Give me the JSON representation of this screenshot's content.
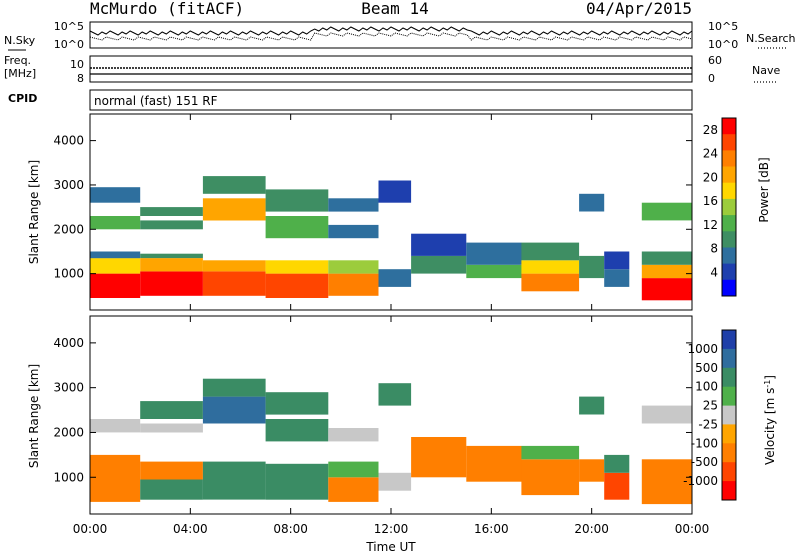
{
  "header": {
    "station": "McMurdo (fitACF)",
    "beam": "Beam 14",
    "date": "04/Apr/2015"
  },
  "top_panels": {
    "nsky_label": "N.Sky",
    "nsearch_label": "N.Search",
    "noise_ticks_left": [
      "10^5",
      "10^0"
    ],
    "noise_ticks_right": [
      "10^5",
      "10^0"
    ],
    "freq_label_line1": "Freq.",
    "freq_label_line2": "[MHz]",
    "freq_ticks": [
      "10",
      "8"
    ],
    "nave_label": "Nave",
    "nave_ticks": [
      "60",
      "0"
    ],
    "cpid_label": "CPID",
    "cpid_value": "normal (fast) 151 RF"
  },
  "chart_data": [
    {
      "type": "heatmap",
      "title": "",
      "xlabel": "",
      "ylabel": "Slant Range [km]",
      "yticks": [
        "1000",
        "2000",
        "3000",
        "4000"
      ],
      "ylim": [
        180,
        4600
      ],
      "xlim": [
        0,
        24
      ],
      "x_units": "hours UT",
      "colorbar_label": "Power [dB]",
      "colorbar_ticks": [
        "4",
        "8",
        "12",
        "16",
        "20",
        "24",
        "28"
      ],
      "colorbar_colors": [
        "#0000ff",
        "#1e3fae",
        "#2e6f9e",
        "#3e8e63",
        "#4fb04a",
        "#9ccc3c",
        "#ffd700",
        "#ffa500",
        "#ff7f00",
        "#ff4500",
        "#ff0000"
      ],
      "bands": [
        {
          "x": [
            0.0,
            2.0
          ],
          "ranges": [
            [
              450,
              1000,
              28
            ],
            [
              1000,
              1350,
              18
            ],
            [
              1350,
              1500,
              8
            ],
            [
              2000,
              2300,
              14
            ],
            [
              2600,
              2950,
              8
            ]
          ]
        },
        {
          "x": [
            2.0,
            4.5
          ],
          "ranges": [
            [
              500,
              1050,
              28
            ],
            [
              1050,
              1350,
              20
            ],
            [
              1350,
              1450,
              10
            ],
            [
              2000,
              2200,
              12
            ],
            [
              2300,
              2500,
              12
            ]
          ]
        },
        {
          "x": [
            4.5,
            7.0
          ],
          "ranges": [
            [
              500,
              1050,
              27
            ],
            [
              1050,
              1300,
              20
            ],
            [
              2200,
              2700,
              20
            ],
            [
              2800,
              3200,
              12
            ]
          ]
        },
        {
          "x": [
            7.0,
            9.5
          ],
          "ranges": [
            [
              450,
              1000,
              27
            ],
            [
              1000,
              1300,
              18
            ],
            [
              1800,
              2300,
              14
            ],
            [
              2400,
              2900,
              10
            ]
          ]
        },
        {
          "x": [
            9.5,
            11.5
          ],
          "ranges": [
            [
              500,
              1000,
              24
            ],
            [
              1000,
              1300,
              16
            ],
            [
              1800,
              2100,
              8
            ],
            [
              2400,
              2700,
              8
            ]
          ]
        },
        {
          "x": [
            11.5,
            12.8
          ],
          "ranges": [
            [
              700,
              1100,
              8
            ],
            [
              2600,
              3100,
              6
            ]
          ]
        },
        {
          "x": [
            12.8,
            15.0
          ],
          "ranges": [
            [
              1000,
              1400,
              10
            ],
            [
              1400,
              1900,
              6
            ]
          ]
        },
        {
          "x": [
            15.0,
            17.2
          ],
          "ranges": [
            [
              900,
              1200,
              14
            ],
            [
              1200,
              1700,
              8
            ]
          ]
        },
        {
          "x": [
            17.2,
            19.5
          ],
          "ranges": [
            [
              600,
              1000,
              24
            ],
            [
              1000,
              1300,
              18
            ],
            [
              1300,
              1700,
              10
            ]
          ]
        },
        {
          "x": [
            19.5,
            20.5
          ],
          "ranges": [
            [
              900,
              1400,
              12
            ],
            [
              2400,
              2800,
              8
            ]
          ]
        },
        {
          "x": [
            20.5,
            21.5
          ],
          "ranges": [
            [
              700,
              1100,
              8
            ],
            [
              1100,
              1500,
              6
            ]
          ]
        },
        {
          "x": [
            22.0,
            24.0
          ],
          "ranges": [
            [
              400,
              900,
              28
            ],
            [
              900,
              1200,
              20
            ],
            [
              1200,
              1500,
              10
            ],
            [
              2200,
              2600,
              14
            ]
          ]
        }
      ]
    },
    {
      "type": "heatmap",
      "title": "",
      "xlabel": "Time UT",
      "ylabel": "Slant Range [km]",
      "yticks": [
        "1000",
        "2000",
        "3000",
        "4000"
      ],
      "xticks": [
        "00:00",
        "04:00",
        "08:00",
        "12:00",
        "16:00",
        "20:00",
        "00:00"
      ],
      "ylim": [
        180,
        4600
      ],
      "xlim": [
        0,
        24
      ],
      "x_units": "hours UT",
      "colorbar_label": "Velocity [m s",
      "colorbar_label_sup": "-1",
      "colorbar_label_end": "]",
      "colorbar_ticks": [
        "1000",
        "500",
        "100",
        "25",
        "-25",
        "-100",
        "-500",
        "-1000"
      ],
      "colorbar_colors": [
        "#1f3fa8",
        "#2f6d9e",
        "#3a8c64",
        "#4fb04a",
        "#c8c8c8",
        "#ffa500",
        "#ff7f00",
        "#ff4500",
        "#ff0000"
      ],
      "bands": [
        {
          "x": [
            0.0,
            2.0
          ],
          "ranges": [
            [
              450,
              1500,
              -300
            ],
            [
              2000,
              2300,
              0
            ]
          ]
        },
        {
          "x": [
            2.0,
            4.5
          ],
          "ranges": [
            [
              500,
              950,
              300
            ],
            [
              950,
              1350,
              -200
            ],
            [
              2000,
              2200,
              0
            ],
            [
              2300,
              2700,
              300
            ]
          ]
        },
        {
          "x": [
            4.5,
            7.0
          ],
          "ranges": [
            [
              500,
              1050,
              300
            ],
            [
              1050,
              1350,
              150
            ],
            [
              2200,
              2800,
              600
            ],
            [
              2800,
              3200,
              200
            ]
          ]
        },
        {
          "x": [
            7.0,
            9.5
          ],
          "ranges": [
            [
              500,
              950,
              300
            ],
            [
              950,
              1300,
              100
            ],
            [
              1800,
              2300,
              400
            ],
            [
              2400,
              2900,
              150
            ]
          ]
        },
        {
          "x": [
            9.5,
            11.5
          ],
          "ranges": [
            [
              450,
              1000,
              -300
            ],
            [
              1000,
              1350,
              80
            ],
            [
              1800,
              2100,
              0
            ]
          ]
        },
        {
          "x": [
            11.5,
            12.8
          ],
          "ranges": [
            [
              700,
              1100,
              0
            ],
            [
              2600,
              3100,
              200
            ]
          ]
        },
        {
          "x": [
            12.8,
            15.0
          ],
          "ranges": [
            [
              1000,
              1900,
              -300
            ]
          ]
        },
        {
          "x": [
            15.0,
            17.2
          ],
          "ranges": [
            [
              900,
              1700,
              -300
            ]
          ]
        },
        {
          "x": [
            17.2,
            19.5
          ],
          "ranges": [
            [
              600,
              1400,
              -300
            ],
            [
              1400,
              1700,
              50
            ]
          ]
        },
        {
          "x": [
            19.5,
            20.5
          ],
          "ranges": [
            [
              900,
              1400,
              -200
            ],
            [
              2400,
              2800,
              150
            ]
          ]
        },
        {
          "x": [
            20.5,
            21.5
          ],
          "ranges": [
            [
              500,
              1100,
              -600
            ],
            [
              1100,
              1500,
              100
            ]
          ]
        },
        {
          "x": [
            22.0,
            24.0
          ],
          "ranges": [
            [
              400,
              1400,
              -200
            ],
            [
              2200,
              2600,
              0
            ]
          ]
        }
      ]
    }
  ]
}
